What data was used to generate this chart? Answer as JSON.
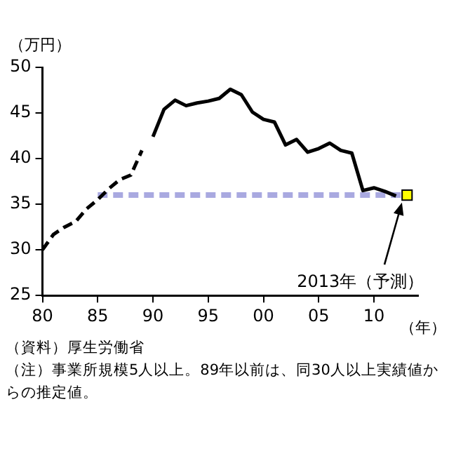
{
  "chart_data": {
    "type": "line",
    "ylabel": "（万円）",
    "xlabel": "（年）",
    "xlim": [
      1980,
      2014
    ],
    "xticks": [
      {
        "value": 1980,
        "label": "80"
      },
      {
        "value": 1985,
        "label": "85"
      },
      {
        "value": 1990,
        "label": "90"
      },
      {
        "value": 1995,
        "label": "95"
      },
      {
        "value": 2000,
        "label": "00"
      },
      {
        "value": 2005,
        "label": "05"
      },
      {
        "value": 2010,
        "label": "10"
      }
    ],
    "ylim": [
      25,
      50
    ],
    "yticks": [
      25,
      30,
      35,
      40,
      45,
      50
    ],
    "grid": false,
    "legend": false,
    "series": [
      {
        "line_style": "dashed",
        "marker": "none",
        "color": "#a9a9e0",
        "x": [
          1985,
          2013
        ],
        "values": [
          36,
          36
        ]
      },
      {
        "line_style": "dashed",
        "marker": "none",
        "color": "#000000",
        "x": [
          1980,
          1981,
          1982,
          1983,
          1984,
          1985,
          1986,
          1987,
          1988,
          1989
        ],
        "values": [
          30.0,
          31.7,
          32.5,
          33.1,
          34.5,
          35.5,
          36.7,
          37.7,
          38.2,
          40.9
        ]
      },
      {
        "line_style": "solid",
        "marker": "none",
        "color": "#000000",
        "x": [
          1990,
          1991,
          1992,
          1993,
          1994,
          1995,
          1996,
          1997,
          1998,
          1999,
          2000,
          2001,
          2002,
          2003,
          2004,
          2005,
          2006,
          2007,
          2008,
          2009,
          2010,
          2011,
          2012
        ],
        "values": [
          42.4,
          45.4,
          46.4,
          45.8,
          46.1,
          46.3,
          46.6,
          47.6,
          47.0,
          45.1,
          44.3,
          44.0,
          41.5,
          42.1,
          40.7,
          41.1,
          41.7,
          40.9,
          40.6,
          36.5,
          36.8,
          36.4,
          35.9
        ]
      },
      {
        "type": "scatter",
        "marker": "square",
        "color": "#ffff00",
        "x": [
          2013
        ],
        "values": [
          36.0
        ]
      }
    ],
    "annotations": [
      {
        "text": "2013年（予測）",
        "x": 2013,
        "y": 36.0
      },
      "（資料）厚生労働省",
      "（注）事業所規模5人以上。89年以前は、同30人以上実績値からの推定値。"
    ]
  }
}
